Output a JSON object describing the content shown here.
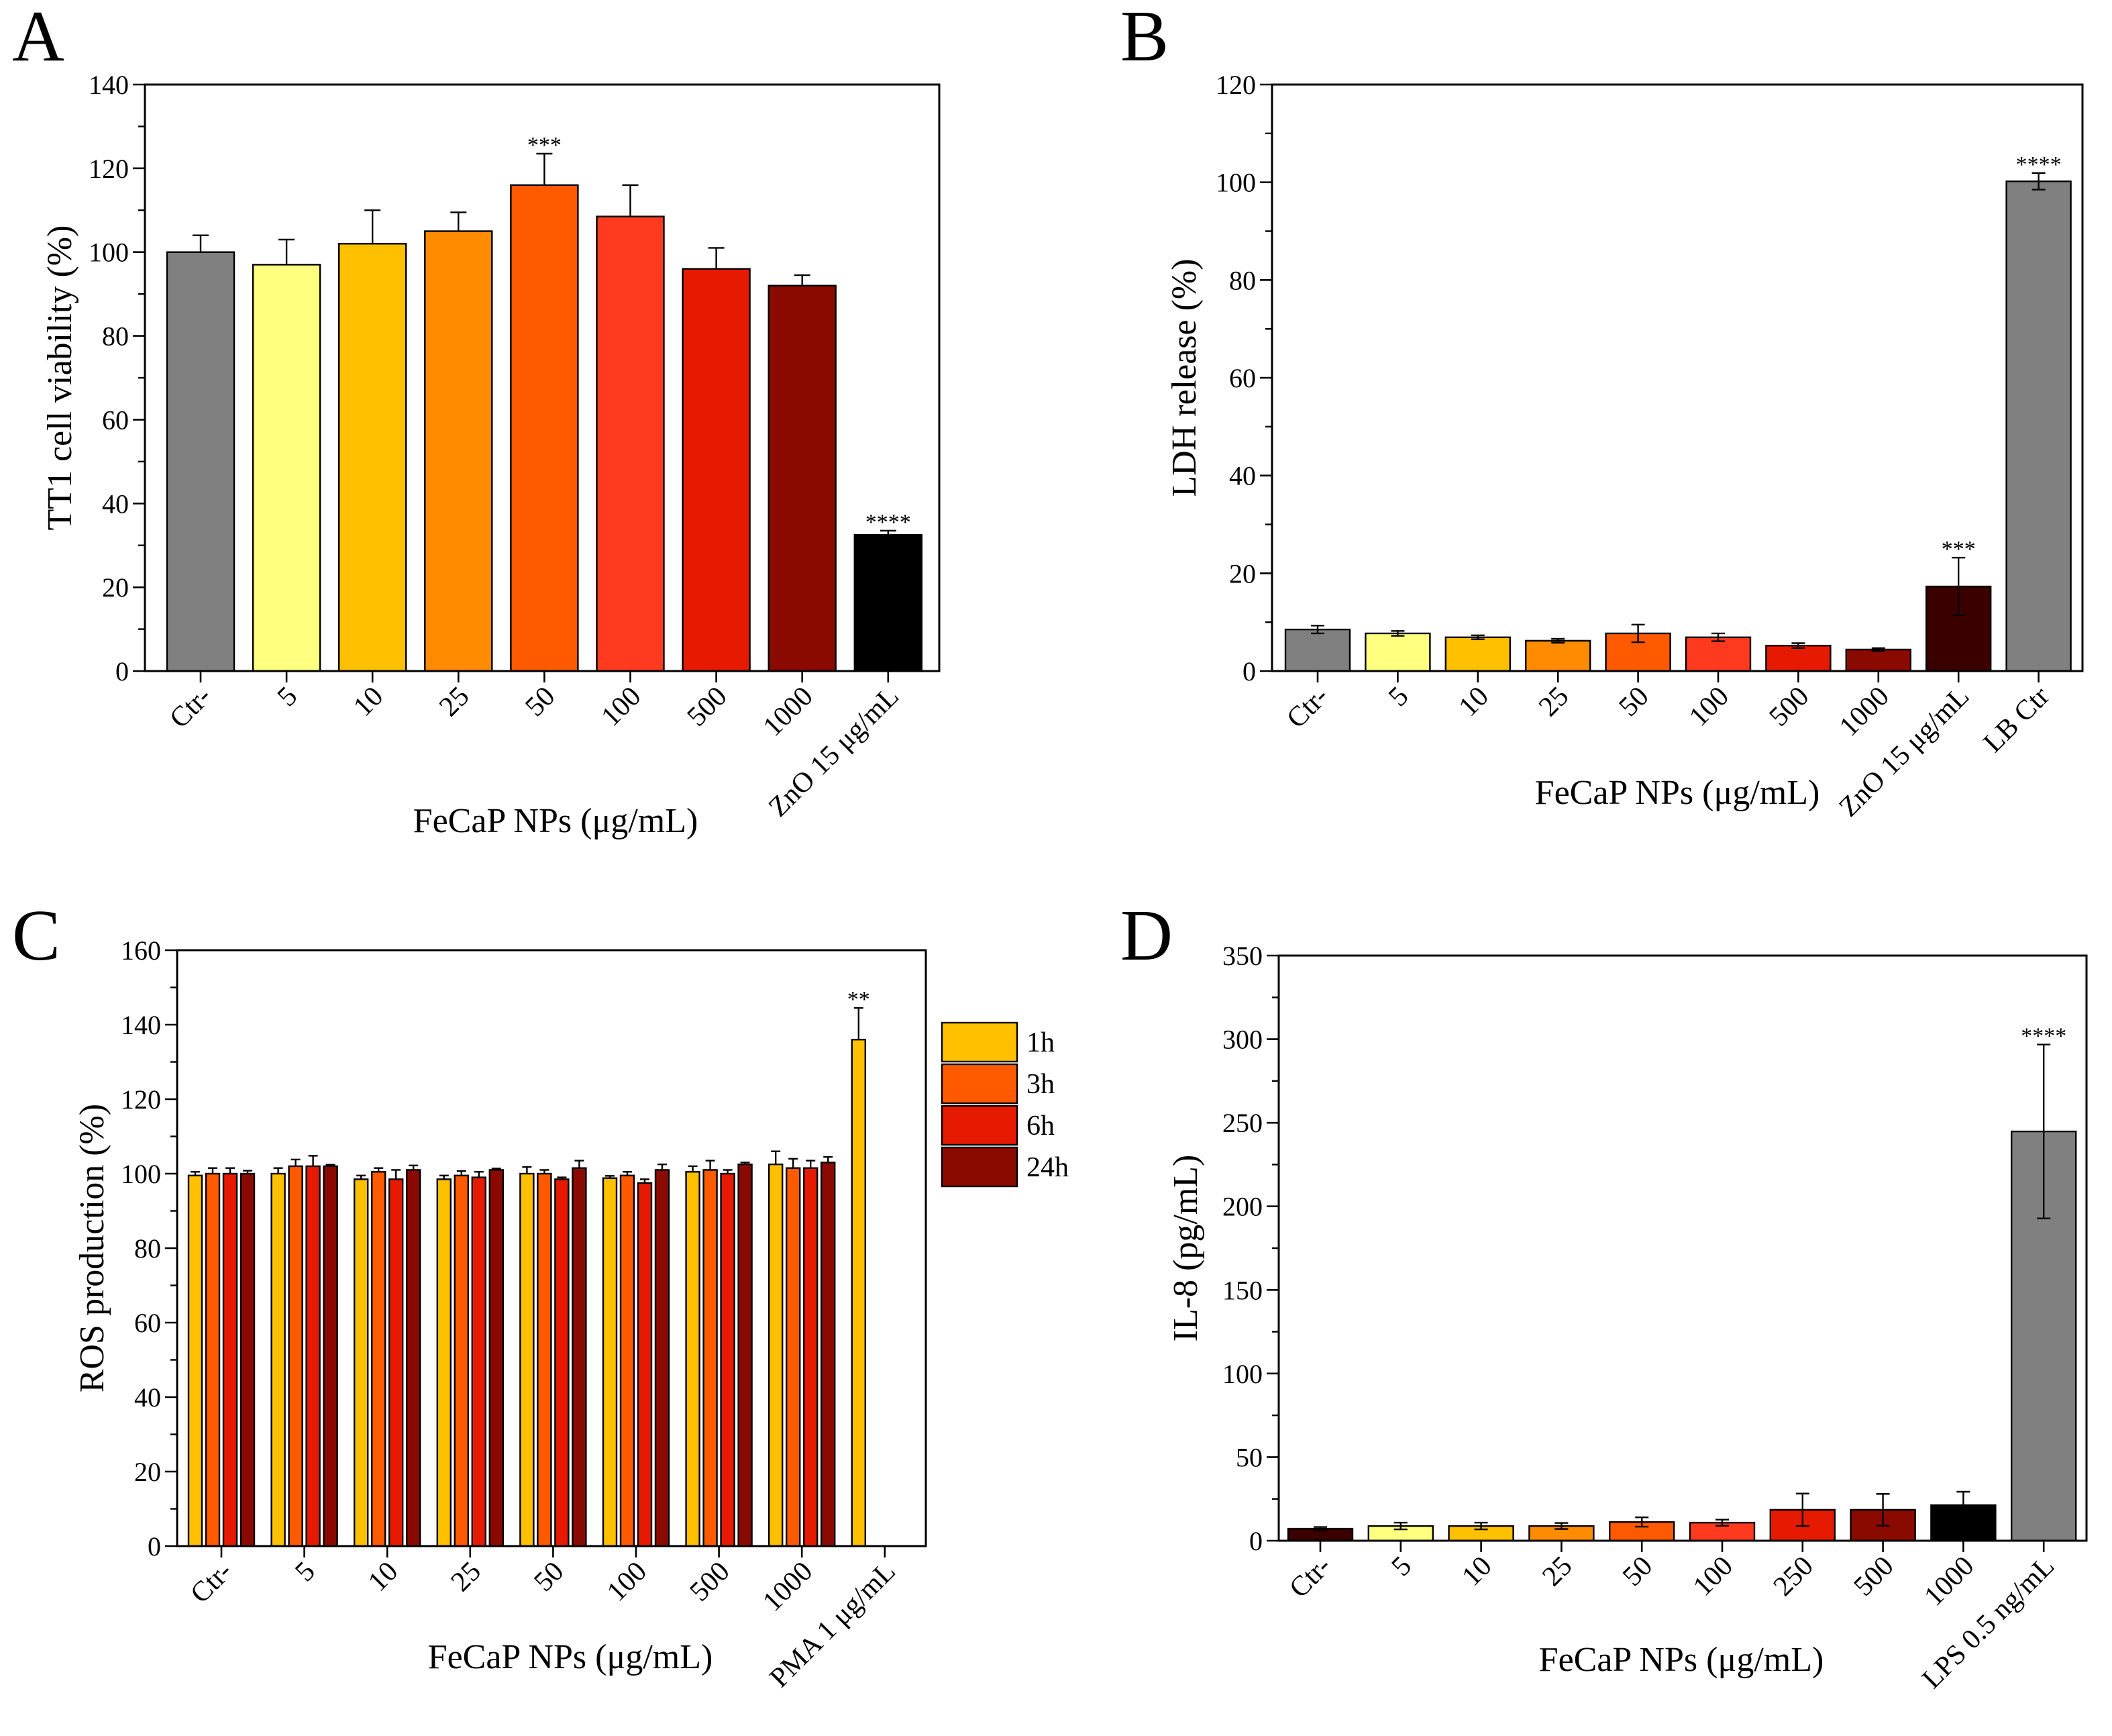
{
  "chart_data": [
    {
      "panel_label": "A",
      "type": "bar",
      "xlabel": "FeCaP NPs (μg/mL)",
      "ylabel": "TT1 cell viability (%)",
      "ylim": [
        0,
        140
      ],
      "yticks": [
        0,
        20,
        40,
        60,
        80,
        100,
        120,
        140
      ],
      "yminor_step": 10,
      "grid": false,
      "error_plus_only": true,
      "categories": [
        "Ctr-",
        "5",
        "10",
        "25",
        "50",
        "100",
        "500",
        "1000",
        "ZnO 15 μg/mL"
      ],
      "series": [
        {
          "values": [
            100,
            97,
            102,
            105,
            116,
            108.5,
            96,
            92,
            32.5
          ],
          "errors": [
            4,
            6,
            8,
            4.5,
            7.5,
            7.5,
            5,
            2.5,
            1
          ],
          "colors": [
            "#808080",
            "#FFFF80",
            "#FFC000",
            "#FF8C00",
            "#FF5A00",
            "#FF3A1E",
            "#E61A00",
            "#8B0A00",
            "#000000"
          ]
        }
      ],
      "significance": [
        null,
        null,
        null,
        null,
        "***",
        null,
        null,
        null,
        "****"
      ]
    },
    {
      "panel_label": "B",
      "type": "bar",
      "xlabel": "FeCaP NPs (μg/mL)",
      "ylabel": "LDH release (%)",
      "ylim": [
        0,
        120
      ],
      "yticks": [
        0,
        20,
        40,
        60,
        80,
        100,
        120
      ],
      "yminor_step": 10,
      "grid": false,
      "error_plus_only": false,
      "categories": [
        "Ctr-",
        "5",
        "10",
        "25",
        "50",
        "100",
        "500",
        "1000",
        "ZnO 15 μg/mL",
        "LB Ctr"
      ],
      "series": [
        {
          "values": [
            8.5,
            7.7,
            6.9,
            6.2,
            7.7,
            6.9,
            5.2,
            4.4,
            17.3,
            100.2
          ],
          "errors": [
            0.8,
            0.5,
            0.4,
            0.4,
            1.8,
            0.8,
            0.5,
            0.3,
            5.9,
            1.7
          ],
          "colors": [
            "#808080",
            "#FFFF80",
            "#FFC000",
            "#FF8C00",
            "#FF5A00",
            "#FF3A1E",
            "#E61A00",
            "#8B0A00",
            "#3A0000",
            "#808080"
          ]
        }
      ],
      "significance": [
        null,
        null,
        null,
        null,
        null,
        null,
        null,
        null,
        "***",
        "****"
      ]
    },
    {
      "panel_label": "C",
      "type": "bar",
      "xlabel": "FeCaP NPs (μg/mL)",
      "ylabel": "ROS production (%)",
      "ylim": [
        0,
        160
      ],
      "yticks": [
        0,
        20,
        40,
        60,
        80,
        100,
        120,
        140,
        160
      ],
      "yminor_step": 10,
      "grid": false,
      "error_plus_only": true,
      "legend_position": "right",
      "categories": [
        "Ctr-",
        "5",
        "10",
        "25",
        "50",
        "100",
        "500",
        "1000",
        "PMA 1 μg/mL"
      ],
      "series": [
        {
          "name": "1h",
          "color": "#FFC000",
          "values": [
            99.5,
            100,
            98.5,
            98.5,
            100,
            98.8,
            100.5,
            102.5,
            136
          ],
          "errors": [
            1,
            1.5,
            1,
            1,
            1.8,
            0.6,
            1.5,
            3.5,
            8.5
          ]
        },
        {
          "name": "3h",
          "color": "#FF5A00",
          "values": [
            100,
            102,
            100.5,
            99.5,
            100,
            99.5,
            101,
            101.5,
            null
          ],
          "errors": [
            1.5,
            1.8,
            1,
            1.2,
            1,
            1,
            2.5,
            2.5,
            null
          ]
        },
        {
          "name": "6h",
          "color": "#E61A00",
          "values": [
            100,
            102,
            98.5,
            99,
            98.5,
            97.5,
            100,
            101.5,
            null
          ],
          "errors": [
            1.5,
            2.8,
            2.5,
            1.5,
            0.5,
            1,
            1,
            2,
            null
          ]
        },
        {
          "name": "24h",
          "color": "#8B0A00",
          "values": [
            100,
            102,
            101,
            101,
            101.5,
            101,
            102.5,
            103,
            null
          ],
          "errors": [
            0.8,
            0.4,
            1.2,
            0.4,
            2,
            1.5,
            0.5,
            1.5,
            null
          ]
        }
      ],
      "significance": [
        null,
        null,
        null,
        null,
        null,
        null,
        null,
        null,
        "**"
      ]
    },
    {
      "panel_label": "D",
      "type": "bar",
      "xlabel": "FeCaP NPs (μg/mL)",
      "ylabel": "IL-8 (pg/mL)",
      "ylim": [
        0,
        350
      ],
      "yticks": [
        0,
        50,
        100,
        150,
        200,
        250,
        300,
        350
      ],
      "yminor_step": 25,
      "grid": false,
      "error_plus_only": false,
      "categories": [
        "Ctr-",
        "5",
        "10",
        "25",
        "50",
        "100",
        "250",
        "500",
        "1000",
        "LPS 0.5 ng/mL"
      ],
      "series": [
        {
          "values": [
            7.2,
            8.8,
            8.8,
            8.8,
            11.2,
            10.8,
            18.5,
            18.5,
            21.3,
            244.8
          ],
          "errors": [
            1,
            2,
            2,
            1.8,
            2.8,
            1.8,
            9.7,
            9.5,
            8,
            52
          ],
          "colors": [
            "#3A0000",
            "#FFFF80",
            "#FFC000",
            "#FF8C00",
            "#FF5A00",
            "#FF3A1E",
            "#E61A00",
            "#8B0A00",
            "#000000",
            "#808080"
          ]
        }
      ],
      "significance": [
        null,
        null,
        null,
        null,
        null,
        null,
        null,
        null,
        null,
        "****"
      ]
    }
  ]
}
